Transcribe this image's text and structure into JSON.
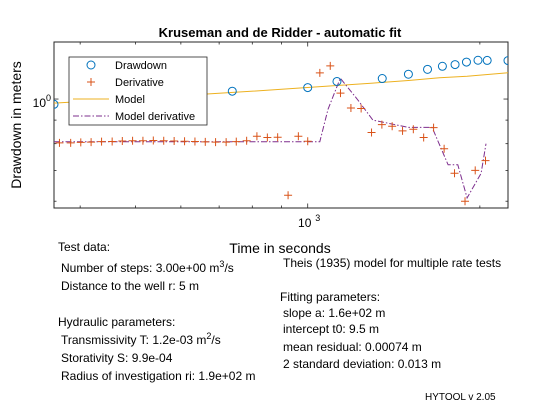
{
  "chart_data": {
    "type": "scatter",
    "title": "Kruseman and de Ridder - automatic fit",
    "xlabel": "Time in seconds",
    "ylabel": "Drawdown in meters",
    "xscale": "log",
    "yscale": "log",
    "xlim": [
      360,
      2240
    ],
    "ylim": [
      0.58,
      1.33
    ],
    "x_ticks": [
      {
        "value": 1000,
        "base": "10",
        "exp": "3"
      }
    ],
    "y_ticks": [
      {
        "value": 1.0,
        "base": "10",
        "exp": "0"
      }
    ],
    "legend_position": "top-left",
    "series": [
      {
        "name": "Drawdown",
        "marker": "circle",
        "color": "#0072BD",
        "x": [
          360,
          523,
          738,
          1000,
          1125,
          1350,
          1500,
          1620,
          1720,
          1810,
          1895,
          1985,
          2060,
          2240
        ],
        "y": [
          0.974,
          1.008,
          1.04,
          1.059,
          1.092,
          1.108,
          1.132,
          1.16,
          1.178,
          1.188,
          1.203,
          1.214,
          1.213,
          1.212
        ]
      },
      {
        "name": "Derivative",
        "marker": "plus",
        "color": "#D95319",
        "x": [
          368,
          385,
          401,
          418,
          436,
          455,
          474,
          494,
          515,
          537,
          560,
          584,
          609,
          635,
          662,
          690,
          720,
          750,
          782,
          815,
          850,
          886,
          924,
          963,
          1000,
          1050,
          1095,
          1141,
          1190,
          1240,
          1293,
          1348,
          1405,
          1465,
          1530,
          1595,
          1660,
          1732,
          1806,
          1884,
          1963,
          2046
        ],
        "y": [
          0.803,
          0.803,
          0.805,
          0.806,
          0.808,
          0.809,
          0.811,
          0.812,
          0.812,
          0.813,
          0.812,
          0.811,
          0.81,
          0.809,
          0.807,
          0.806,
          0.806,
          0.808,
          0.812,
          0.83,
          0.825,
          0.826,
          0.618,
          0.83,
          0.81,
          1.14,
          1.18,
          1.03,
          0.956,
          0.954,
          0.846,
          0.88,
          0.873,
          0.853,
          0.86,
          0.825,
          0.867,
          0.78,
          0.69,
          0.6,
          0.7,
          0.735
        ]
      },
      {
        "name": "Model",
        "line": "solid",
        "color": "#EDB120",
        "x": [
          360,
          500,
          700,
          900,
          1100,
          1300,
          1500,
          1700,
          1900,
          2100,
          2240
        ],
        "y": [
          0.98,
          1.003,
          1.029,
          1.05,
          1.068,
          1.083,
          1.097,
          1.112,
          1.121,
          1.133,
          1.14
        ]
      },
      {
        "name": "Model derivative",
        "line": "dashdot",
        "color": "#7E2F8E",
        "x": [
          360,
          850,
          1050,
          1085,
          1140,
          1220,
          1300,
          1500,
          1545,
          1650,
          1760,
          1830,
          1900,
          2010,
          2050
        ],
        "y": [
          0.808,
          0.808,
          0.808,
          0.95,
          1.11,
          1.0,
          0.9,
          0.868,
          0.868,
          0.868,
          0.72,
          0.72,
          0.61,
          0.69,
          0.8
        ]
      }
    ]
  },
  "info": {
    "test_data_header": "Test data:",
    "steps_text": "Number of steps: 3.00e+00 m",
    "steps_sup": "3",
    "steps_unit": "/s",
    "distance": "Distance to the well r: 5 m",
    "hydraulic_header": "Hydraulic parameters:",
    "transmissivity_text": "Transmissivity T: 1.2e-03 m",
    "transmissivity_sup": "2",
    "transmissivity_unit": "/s",
    "storativity": "Storativity S: 9.9e-04",
    "radius": "Radius of investigation ri: 1.9e+02 m",
    "model_desc": "Theis (1935) model for multiple rate tests",
    "fitting_header": "Fitting parameters:",
    "slope": "slope a: 1.6e+02 m",
    "intercept": "intercept t0: 9.5 m",
    "mean_residual": "mean residual: 0.00074 m",
    "std_dev": "2 standard deviation: 0.013 m",
    "version": "HYTOOL v 2.05"
  }
}
